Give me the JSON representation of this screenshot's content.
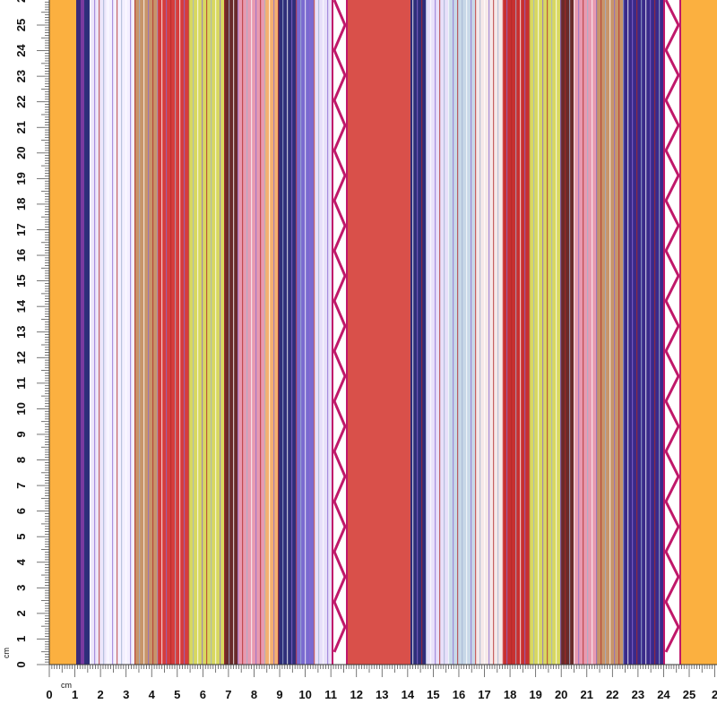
{
  "ruler": {
    "x_unit": "cm",
    "y_unit": "cm",
    "x_labels": [
      "0",
      "1",
      "2",
      "3",
      "4",
      "5",
      "6",
      "7",
      "8",
      "9",
      "10",
      "11",
      "12",
      "13",
      "14",
      "15",
      "16",
      "17",
      "18",
      "19",
      "20",
      "21",
      "22",
      "23",
      "24",
      "25",
      "2"
    ],
    "y_labels": [
      "0",
      "1",
      "2",
      "3",
      "4",
      "5",
      "6",
      "7",
      "8",
      "9",
      "10",
      "11",
      "12",
      "13",
      "14",
      "15",
      "16",
      "17",
      "18",
      "19",
      "20",
      "21",
      "22",
      "23",
      "24",
      "25",
      "2"
    ]
  }
}
